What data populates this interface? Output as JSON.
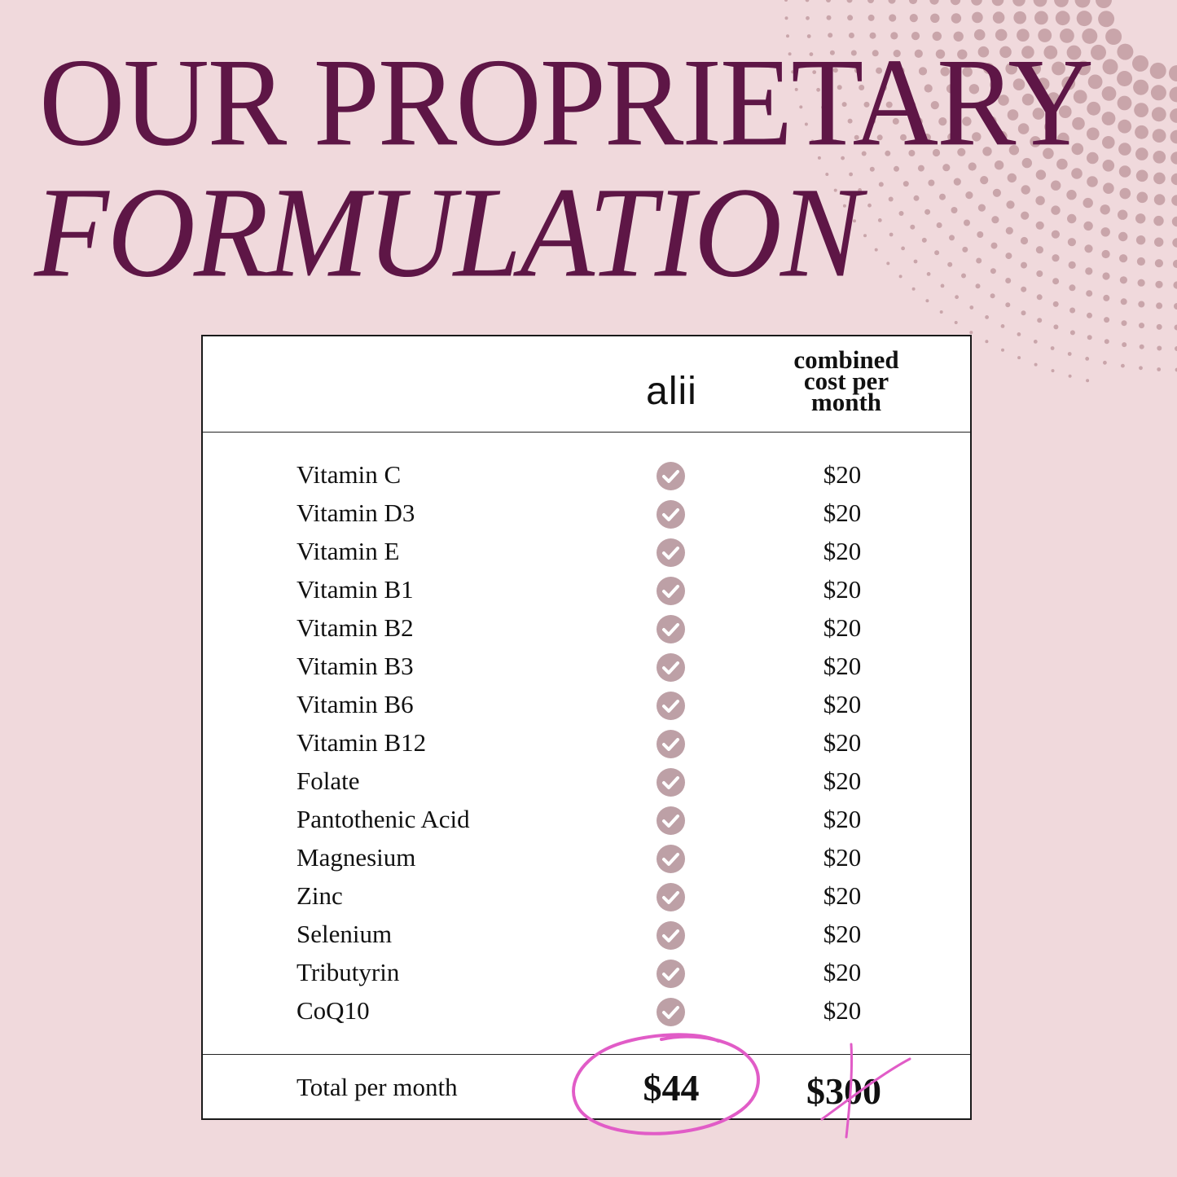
{
  "heading": {
    "line1": "OUR PROPRIETARY",
    "line2": "FORMULATION"
  },
  "table": {
    "brand_logo_text": "alii",
    "combined_header_lines": [
      "combined",
      "cost per",
      "month"
    ],
    "rows": [
      {
        "ingredient": "Vitamin C",
        "included": true,
        "price": "$20"
      },
      {
        "ingredient": "Vitamin D3",
        "included": true,
        "price": "$20"
      },
      {
        "ingredient": "Vitamin E",
        "included": true,
        "price": "$20"
      },
      {
        "ingredient": "Vitamin B1",
        "included": true,
        "price": "$20"
      },
      {
        "ingredient": "Vitamin B2",
        "included": true,
        "price": "$20"
      },
      {
        "ingredient": "Vitamin B3",
        "included": true,
        "price": "$20"
      },
      {
        "ingredient": "Vitamin B6",
        "included": true,
        "price": "$20"
      },
      {
        "ingredient": "Vitamin B12",
        "included": true,
        "price": "$20"
      },
      {
        "ingredient": "Folate",
        "included": true,
        "price": "$20"
      },
      {
        "ingredient": "Pantothenic Acid",
        "included": true,
        "price": "$20"
      },
      {
        "ingredient": "Magnesium",
        "included": true,
        "price": "$20"
      },
      {
        "ingredient": "Zinc",
        "included": true,
        "price": "$20"
      },
      {
        "ingredient": "Selenium",
        "included": true,
        "price": "$20"
      },
      {
        "ingredient": "Tributyrin",
        "included": true,
        "price": "$20"
      },
      {
        "ingredient": "CoQ10",
        "included": true,
        "price": "$20"
      }
    ],
    "total_label": "Total per month",
    "total_alii": "$44",
    "total_combined": "$300"
  },
  "icons": {
    "check": "check-circle-icon",
    "circle_mark": "hand-drawn-circle",
    "cross_mark": "hand-drawn-cross"
  },
  "colors": {
    "background": "#f0d9dc",
    "heading": "#5e1646",
    "check": "#bda0a6",
    "highlight": "#e15cc7",
    "table_background": "#ffffff"
  }
}
